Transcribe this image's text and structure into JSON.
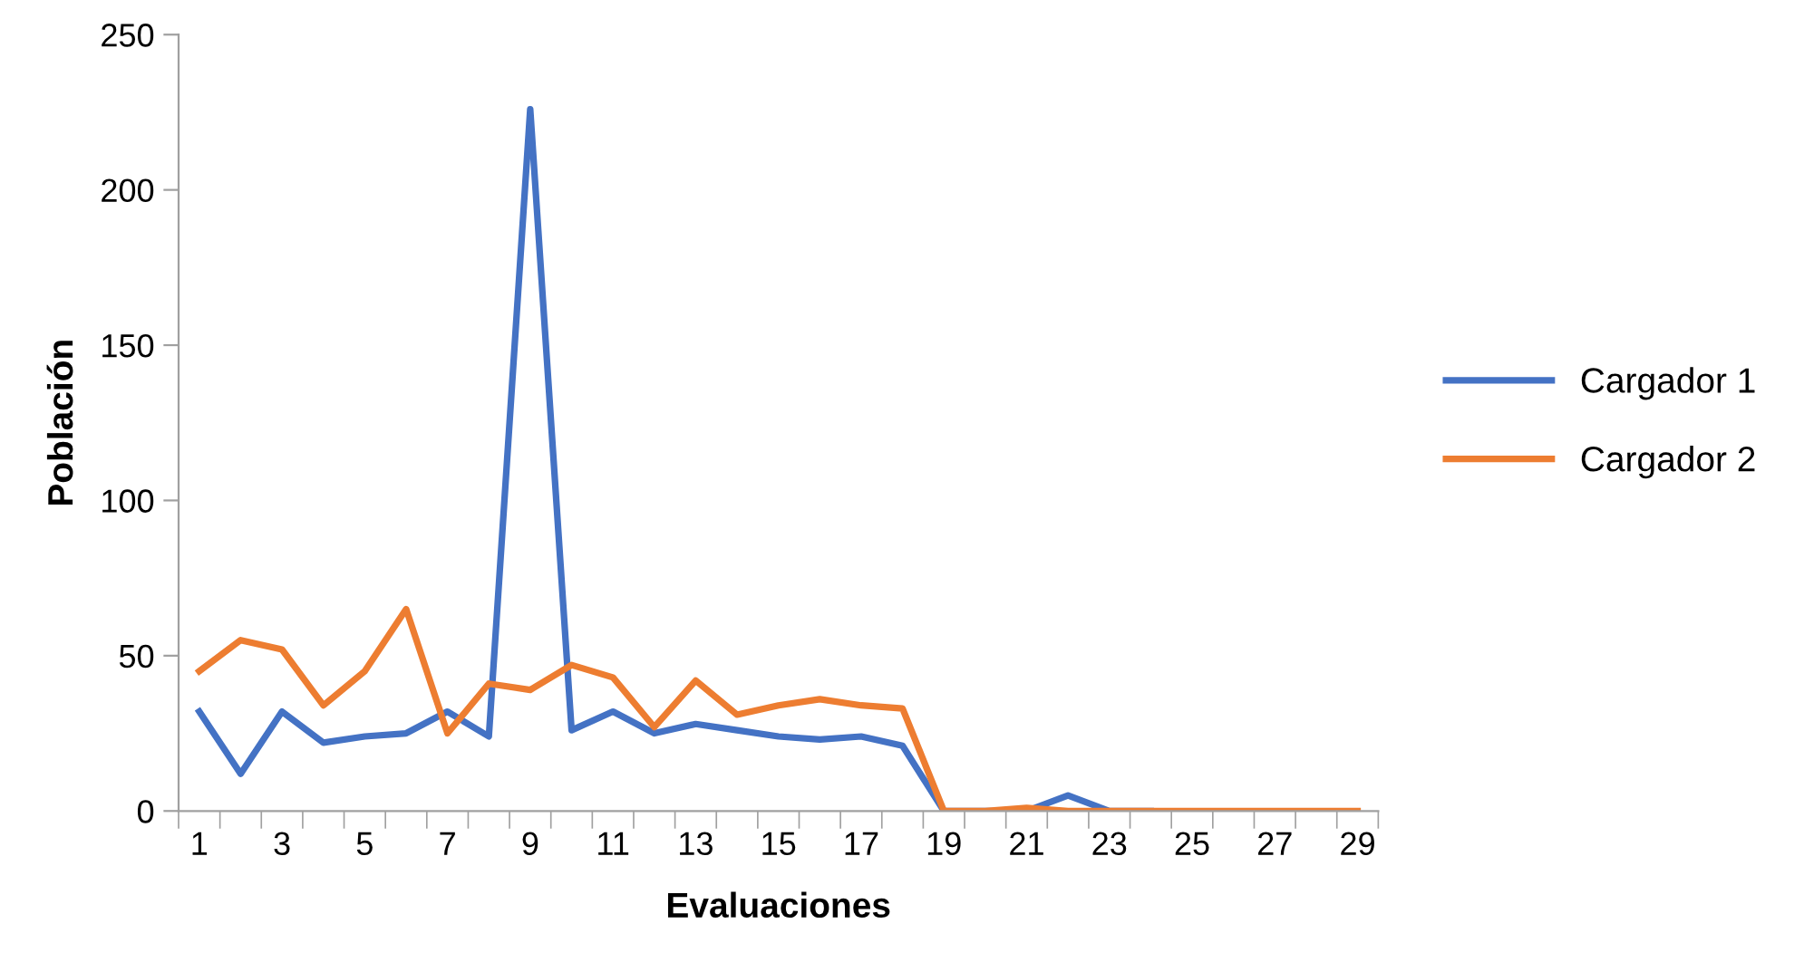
{
  "chart_data": {
    "type": "line",
    "xlabel": "Evaluaciones",
    "ylabel": "Población",
    "categories": [
      "1",
      null,
      "3",
      null,
      "5",
      null,
      "7",
      null,
      "9",
      null,
      "11",
      null,
      "13",
      null,
      "15",
      null,
      "17",
      null,
      "19",
      null,
      "21",
      null,
      "23",
      null,
      "25",
      null,
      "27",
      null,
      "29"
    ],
    "series": [
      {
        "name": "Cargador 1",
        "color": "#4472c4",
        "values": [
          32,
          12,
          32,
          22,
          24,
          25,
          32,
          24,
          226,
          26,
          32,
          25,
          28,
          26,
          24,
          23,
          24,
          21,
          0,
          0,
          0,
          5,
          0,
          0,
          null,
          null,
          null,
          null,
          null
        ]
      },
      {
        "name": "Cargador 2",
        "color": "#ed7d31",
        "values": [
          45,
          55,
          52,
          34,
          45,
          65,
          25,
          41,
          39,
          47,
          43,
          27,
          42,
          31,
          34,
          36,
          34,
          33,
          0,
          0,
          1,
          0,
          0,
          0,
          0,
          0,
          0,
          0,
          0
        ]
      }
    ],
    "ylim": [
      0,
      250
    ],
    "yticks": [
      0,
      50,
      100,
      150,
      200,
      250
    ],
    "grid": false,
    "legend": "right",
    "marker": "none",
    "line_style": "solid"
  }
}
